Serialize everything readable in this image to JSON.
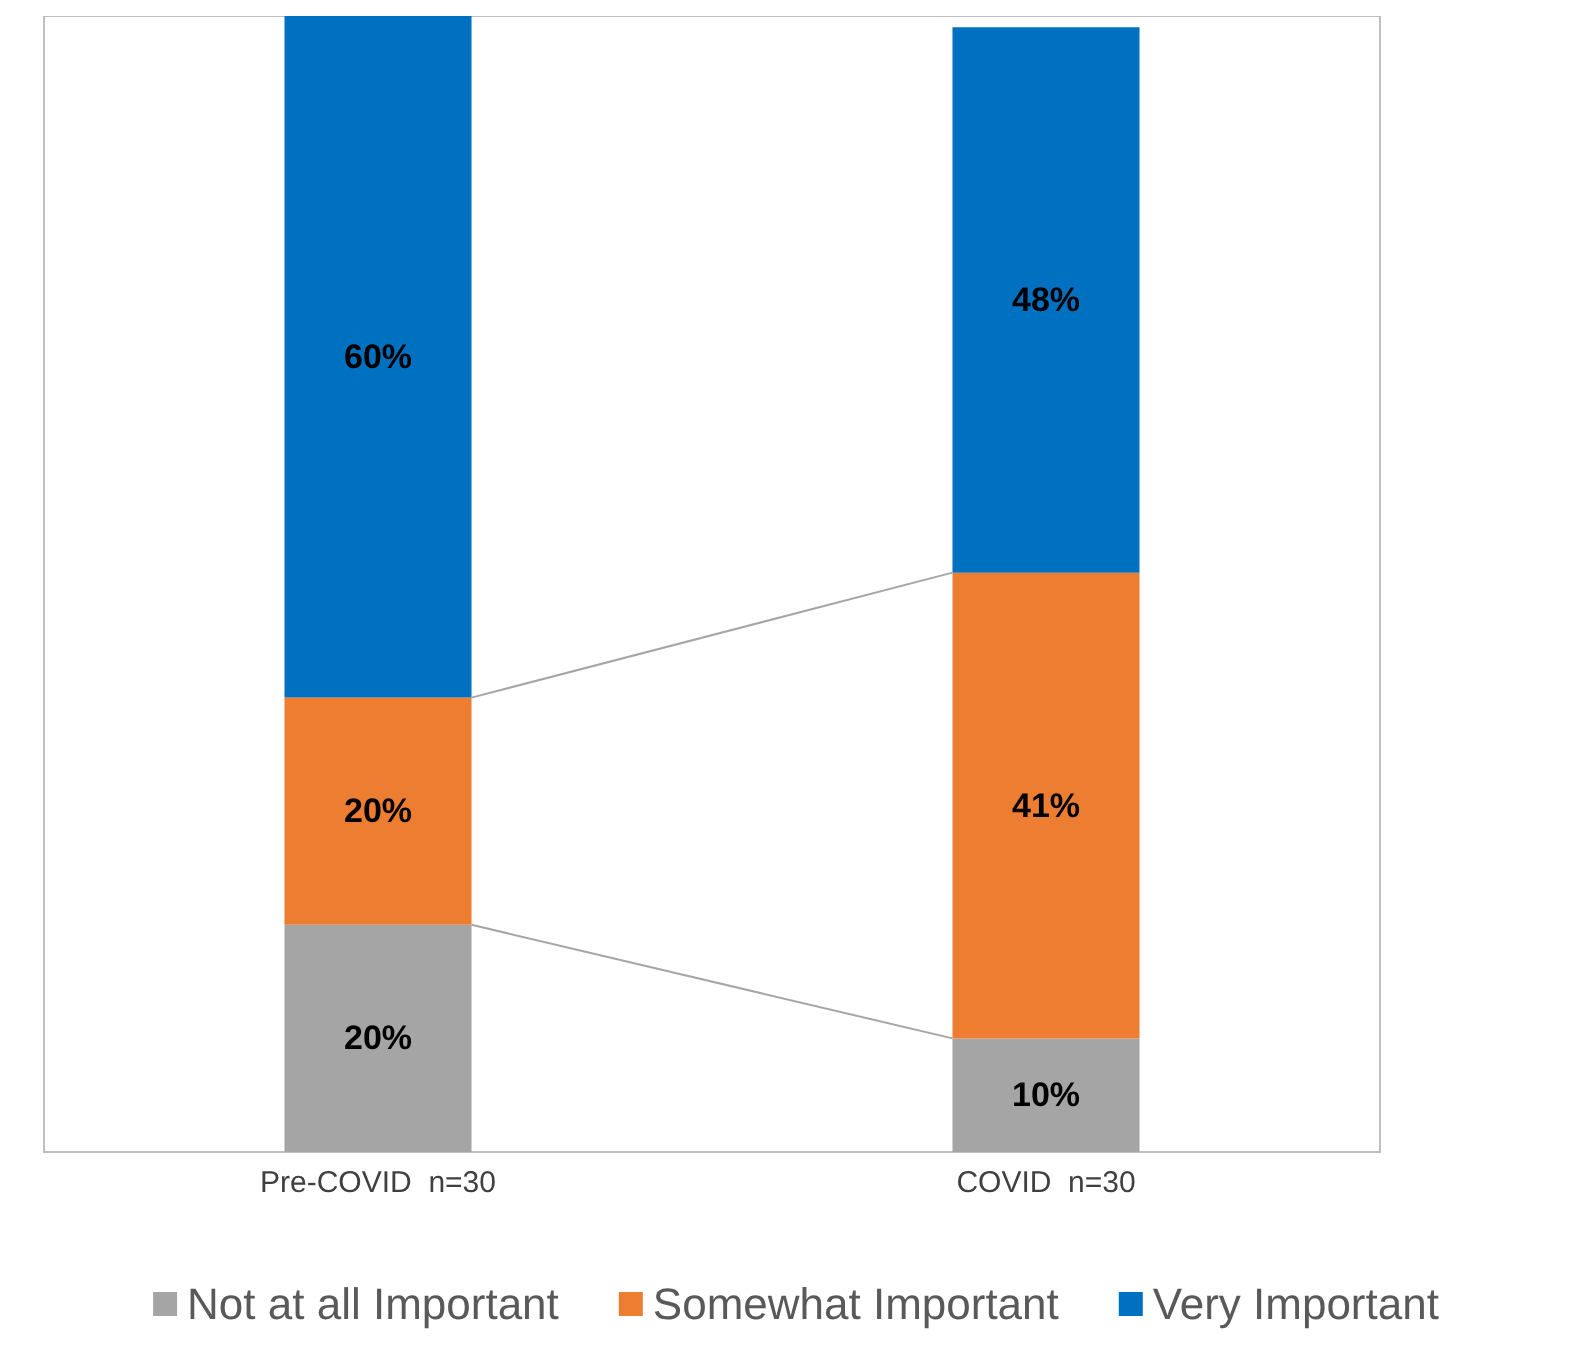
{
  "chart_data": {
    "type": "bar",
    "stacked": true,
    "categories": [
      "Pre-COVID  n=30",
      "COVID  n=30"
    ],
    "series": [
      {
        "name": "Not at all Important",
        "color": "#a5a5a5",
        "values": [
          20,
          10
        ],
        "value_labels": [
          "20%",
          "10%"
        ]
      },
      {
        "name": "Somewhat Important",
        "color": "#ed7d31",
        "values": [
          20,
          41
        ],
        "value_labels": [
          "20%",
          "41%"
        ]
      },
      {
        "name": "Very Important",
        "color": "#0070c0",
        "values": [
          60,
          48
        ],
        "value_labels": [
          "60%",
          "48%"
        ]
      }
    ],
    "tick_labels": "x",
    "legend": "bottom",
    "grid": false
  }
}
